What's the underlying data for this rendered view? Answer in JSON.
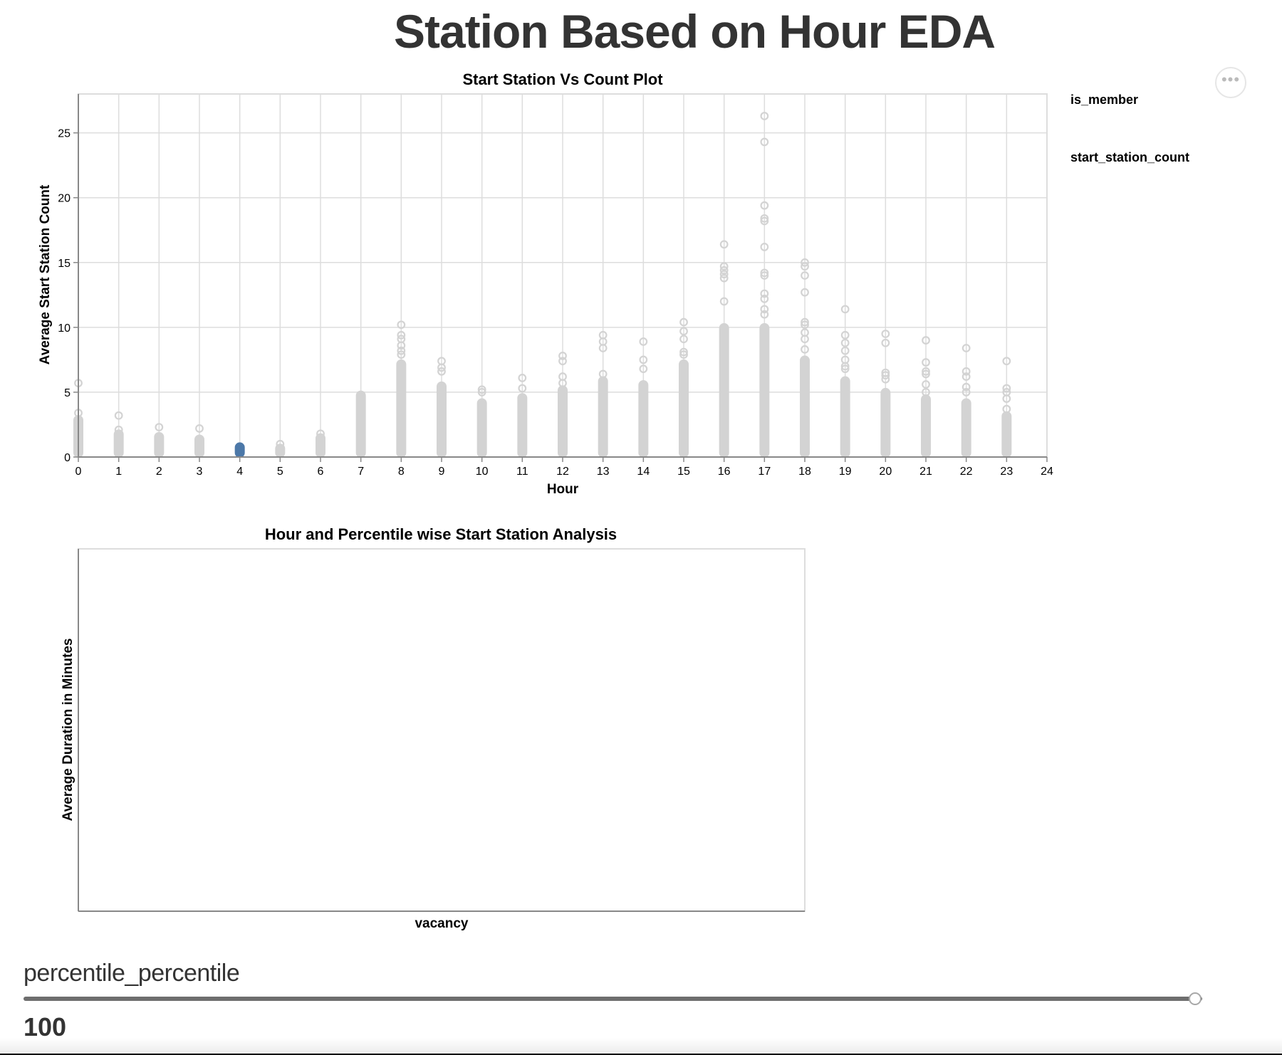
{
  "page_title": "Station Based on Hour EDA",
  "menu": {
    "icon": "ellipsis-icon",
    "glyph": "•••"
  },
  "legends": [
    "is_member",
    "start_station_count"
  ],
  "slider": {
    "label": "percentile_percentile",
    "value": 100,
    "min": 0,
    "max": 100
  },
  "colors": {
    "point": "#d3d3d3",
    "selected": "#4c78a8",
    "grid": "#dddddd",
    "axis": "#888888"
  },
  "chart_data": [
    {
      "type": "scatter",
      "title": "Start Station Vs Count Plot",
      "xlabel": "Hour",
      "ylabel": "Average Start Station Count",
      "xlim": [
        0,
        24
      ],
      "ylim": [
        0,
        28
      ],
      "x_ticks": [
        0,
        1,
        2,
        3,
        4,
        5,
        6,
        7,
        8,
        9,
        10,
        11,
        12,
        13,
        14,
        15,
        16,
        17,
        18,
        19,
        20,
        21,
        22,
        23,
        24
      ],
      "y_ticks": [
        0,
        5,
        10,
        15,
        20,
        25
      ],
      "grid": true,
      "selected_hour": 4,
      "series": [
        {
          "x": 0,
          "dense_max": 2.9,
          "outliers": [
            3.4,
            5.7
          ]
        },
        {
          "x": 1,
          "dense_max": 1.8,
          "outliers": [
            2.1,
            3.2
          ]
        },
        {
          "x": 2,
          "dense_max": 1.6,
          "outliers": [
            2.3
          ]
        },
        {
          "x": 3,
          "dense_max": 1.4,
          "outliers": [
            2.2
          ]
        },
        {
          "x": 4,
          "dense_max": 0.8,
          "outliers": []
        },
        {
          "x": 5,
          "dense_max": 0.7,
          "outliers": [
            1.0
          ]
        },
        {
          "x": 6,
          "dense_max": 1.5,
          "outliers": [
            1.8
          ]
        },
        {
          "x": 7,
          "dense_max": 4.8,
          "outliers": []
        },
        {
          "x": 8,
          "dense_max": 7.2,
          "outliers": [
            7.9,
            8.2,
            8.6,
            9.1,
            9.4,
            10.2
          ]
        },
        {
          "x": 9,
          "dense_max": 5.5,
          "outliers": [
            6.6,
            6.9,
            7.4
          ]
        },
        {
          "x": 10,
          "dense_max": 4.2,
          "outliers": [
            5.0,
            5.2
          ]
        },
        {
          "x": 11,
          "dense_max": 4.6,
          "outliers": [
            5.3,
            6.1
          ]
        },
        {
          "x": 12,
          "dense_max": 5.2,
          "outliers": [
            5.7,
            6.2,
            7.4,
            7.8
          ]
        },
        {
          "x": 13,
          "dense_max": 5.9,
          "outliers": [
            6.4,
            8.4,
            8.9,
            9.4
          ]
        },
        {
          "x": 14,
          "dense_max": 5.6,
          "outliers": [
            6.8,
            7.5,
            8.9
          ]
        },
        {
          "x": 15,
          "dense_max": 7.2,
          "outliers": [
            7.9,
            8.1,
            9.1,
            9.7,
            10.4
          ]
        },
        {
          "x": 16,
          "dense_max": 10.0,
          "outliers": [
            12.0,
            13.8,
            14.1,
            14.4,
            14.7,
            16.4
          ]
        },
        {
          "x": 17,
          "dense_max": 10.0,
          "outliers": [
            11.0,
            11.4,
            12.2,
            12.6,
            14.0,
            14.2,
            16.2,
            18.2,
            18.4,
            19.4,
            24.3,
            26.3
          ]
        },
        {
          "x": 18,
          "dense_max": 7.5,
          "outliers": [
            8.3,
            9.1,
            9.6,
            10.2,
            10.4,
            12.7,
            14.0,
            14.7,
            15.0
          ]
        },
        {
          "x": 19,
          "dense_max": 5.9,
          "outliers": [
            6.8,
            7.0,
            7.5,
            8.2,
            8.8,
            9.4,
            11.4
          ]
        },
        {
          "x": 20,
          "dense_max": 5.0,
          "outliers": [
            6.0,
            6.3,
            6.5,
            8.8,
            9.5
          ]
        },
        {
          "x": 21,
          "dense_max": 4.5,
          "outliers": [
            5.0,
            5.6,
            6.4,
            6.6,
            7.3,
            9.0
          ]
        },
        {
          "x": 22,
          "dense_max": 4.2,
          "outliers": [
            5.0,
            5.4,
            6.2,
            6.6,
            8.4
          ]
        },
        {
          "x": 23,
          "dense_max": 3.2,
          "outliers": [
            3.7,
            4.5,
            5.0,
            5.3,
            7.4
          ]
        }
      ]
    },
    {
      "type": "bar",
      "title": "Hour and Percentile wise Start Station Analysis",
      "xlabel": "vacancy",
      "ylabel": "Average Duration in Minutes",
      "values": []
    }
  ]
}
